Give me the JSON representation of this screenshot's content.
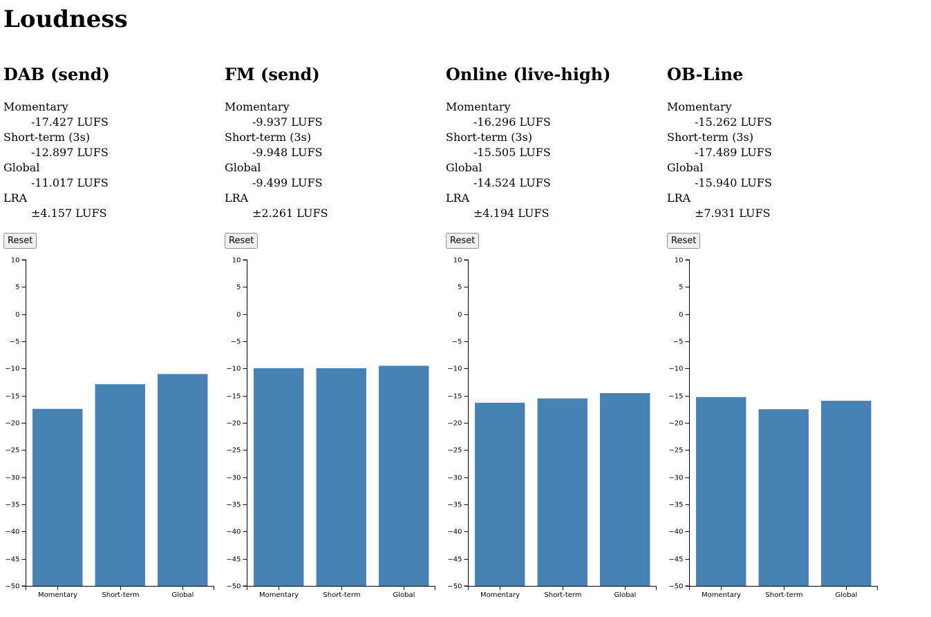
{
  "page": {
    "title": "Loudness"
  },
  "labels": {
    "momentary": "Momentary",
    "short_term": "Short-term (3s)",
    "global": "Global",
    "lra": "LRA",
    "reset": "Reset"
  },
  "panels": [
    {
      "title": "DAB (send)",
      "momentary": "-17.427 LUFS",
      "short_term": "-12.897 LUFS",
      "global": "-11.017 LUFS",
      "lra": "±4.157 LUFS"
    },
    {
      "title": "FM (send)",
      "momentary": "-9.937 LUFS",
      "short_term": "-9.948 LUFS",
      "global": "-9.499 LUFS",
      "lra": "±2.261 LUFS"
    },
    {
      "title": "Online (live-high)",
      "momentary": "-16.296 LUFS",
      "short_term": "-15.505 LUFS",
      "global": "-14.524 LUFS",
      "lra": "±4.194 LUFS"
    },
    {
      "title": "OB-Line",
      "momentary": "-15.262 LUFS",
      "short_term": "-17.489 LUFS",
      "global": "-15.940 LUFS",
      "lra": "±7.931 LUFS"
    }
  ],
  "colors": {
    "bar": "#4682b4"
  },
  "chart_data": [
    {
      "type": "bar",
      "categories": [
        "Momentary",
        "Short-term",
        "Global"
      ],
      "values": [
        -17.427,
        -12.897,
        -11.017
      ],
      "ylim": [
        -50,
        10
      ],
      "yticks": [
        10,
        5,
        0,
        -5,
        -10,
        -15,
        -20,
        -25,
        -30,
        -35,
        -40,
        -45,
        -50
      ],
      "grid": false
    },
    {
      "type": "bar",
      "categories": [
        "Momentary",
        "Short-term",
        "Global"
      ],
      "values": [
        -9.937,
        -9.948,
        -9.499
      ],
      "ylim": [
        -50,
        10
      ],
      "yticks": [
        10,
        5,
        0,
        -5,
        -10,
        -15,
        -20,
        -25,
        -30,
        -35,
        -40,
        -45,
        -50
      ],
      "grid": false
    },
    {
      "type": "bar",
      "categories": [
        "Momentary",
        "Short-term",
        "Global"
      ],
      "values": [
        -16.296,
        -15.505,
        -14.524
      ],
      "ylim": [
        -50,
        10
      ],
      "yticks": [
        10,
        5,
        0,
        -5,
        -10,
        -15,
        -20,
        -25,
        -30,
        -35,
        -40,
        -45,
        -50
      ],
      "grid": false
    },
    {
      "type": "bar",
      "categories": [
        "Momentary",
        "Short-term",
        "Global"
      ],
      "values": [
        -15.262,
        -17.489,
        -15.94
      ],
      "ylim": [
        -50,
        10
      ],
      "yticks": [
        10,
        5,
        0,
        -5,
        -10,
        -15,
        -20,
        -25,
        -30,
        -35,
        -40,
        -45,
        -50
      ],
      "grid": false
    }
  ]
}
